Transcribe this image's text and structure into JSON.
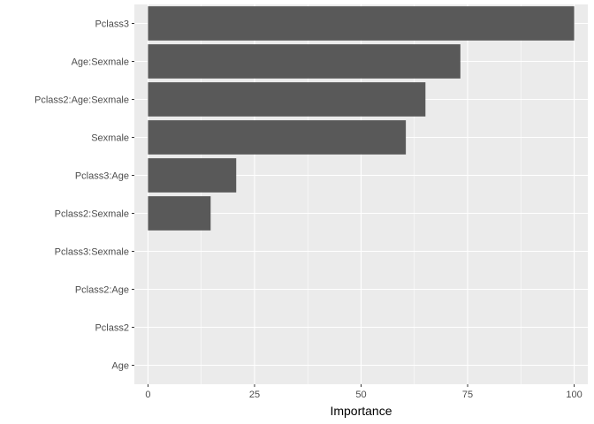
{
  "chart_data": {
    "type": "bar",
    "orientation": "horizontal",
    "title": "",
    "xlabel": "Importance",
    "ylabel": "",
    "categories": [
      "Pclass3",
      "Age:Sexmale",
      "Pclass2:Age:Sexmale",
      "Sexmale",
      "Pclass3:Age",
      "Pclass2:Sexmale",
      "Pclass3:Sexmale",
      "Pclass2:Age",
      "Pclass2",
      "Age"
    ],
    "values": [
      100,
      73.3,
      65.1,
      60.5,
      20.7,
      14.7,
      0,
      0,
      0,
      0
    ],
    "xlim": [
      -3.2,
      103.2
    ],
    "x_ticks": [
      0,
      25,
      50,
      75,
      100
    ],
    "x_tick_labels": [
      "0",
      "25",
      "50",
      "75",
      "100"
    ],
    "grid": true,
    "colors": {
      "panel_background": "#ebebeb",
      "grid_major": "#ffffff",
      "bar_fill": "#595959",
      "tick_label": "#4d4d4d",
      "tick_mark": "#333333"
    }
  }
}
